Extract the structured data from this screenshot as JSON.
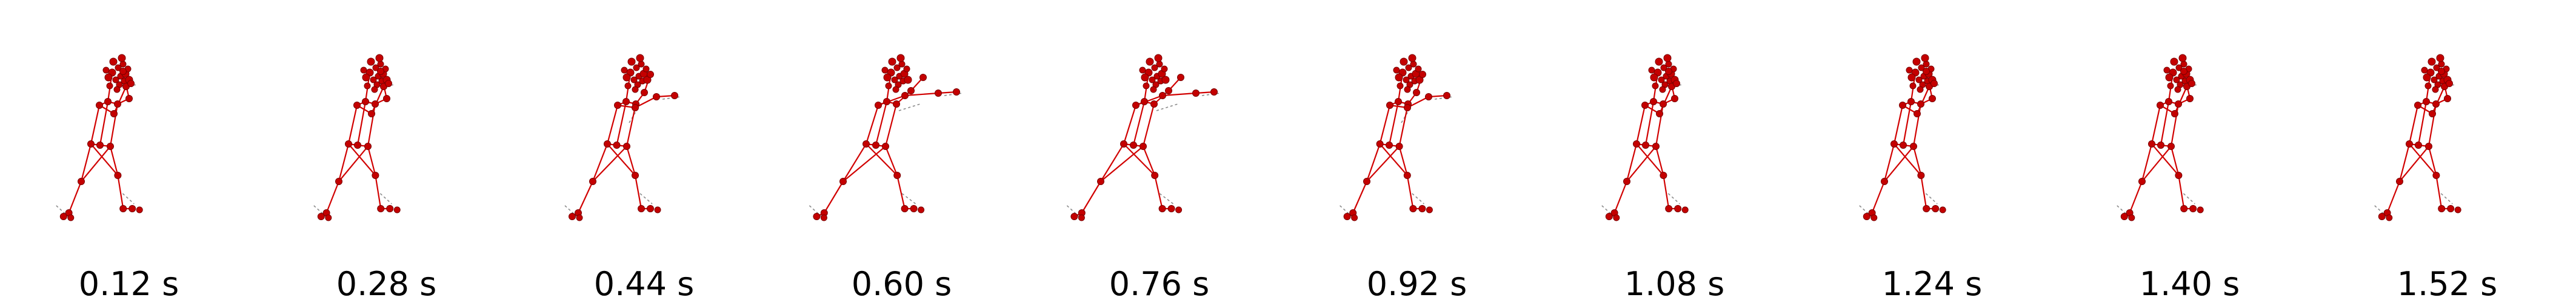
{
  "colors": {
    "skeleton": "#d10000",
    "joint": "#c40000",
    "prediction": "#8a8a8a"
  },
  "frames": [
    {
      "label": "0.12 s",
      "pose": "guard"
    },
    {
      "label": "0.28 s",
      "pose": "guard"
    },
    {
      "label": "0.44 s",
      "pose": "punch-start"
    },
    {
      "label": "0.60 s",
      "pose": "punch-extended"
    },
    {
      "label": "0.76 s",
      "pose": "punch-extended"
    },
    {
      "label": "0.92 s",
      "pose": "retract"
    },
    {
      "label": "1.08 s",
      "pose": "guard"
    },
    {
      "label": "1.24 s",
      "pose": "guard"
    },
    {
      "label": "1.40 s",
      "pose": "guard"
    },
    {
      "label": "1.52 s",
      "pose": "guard"
    }
  ]
}
